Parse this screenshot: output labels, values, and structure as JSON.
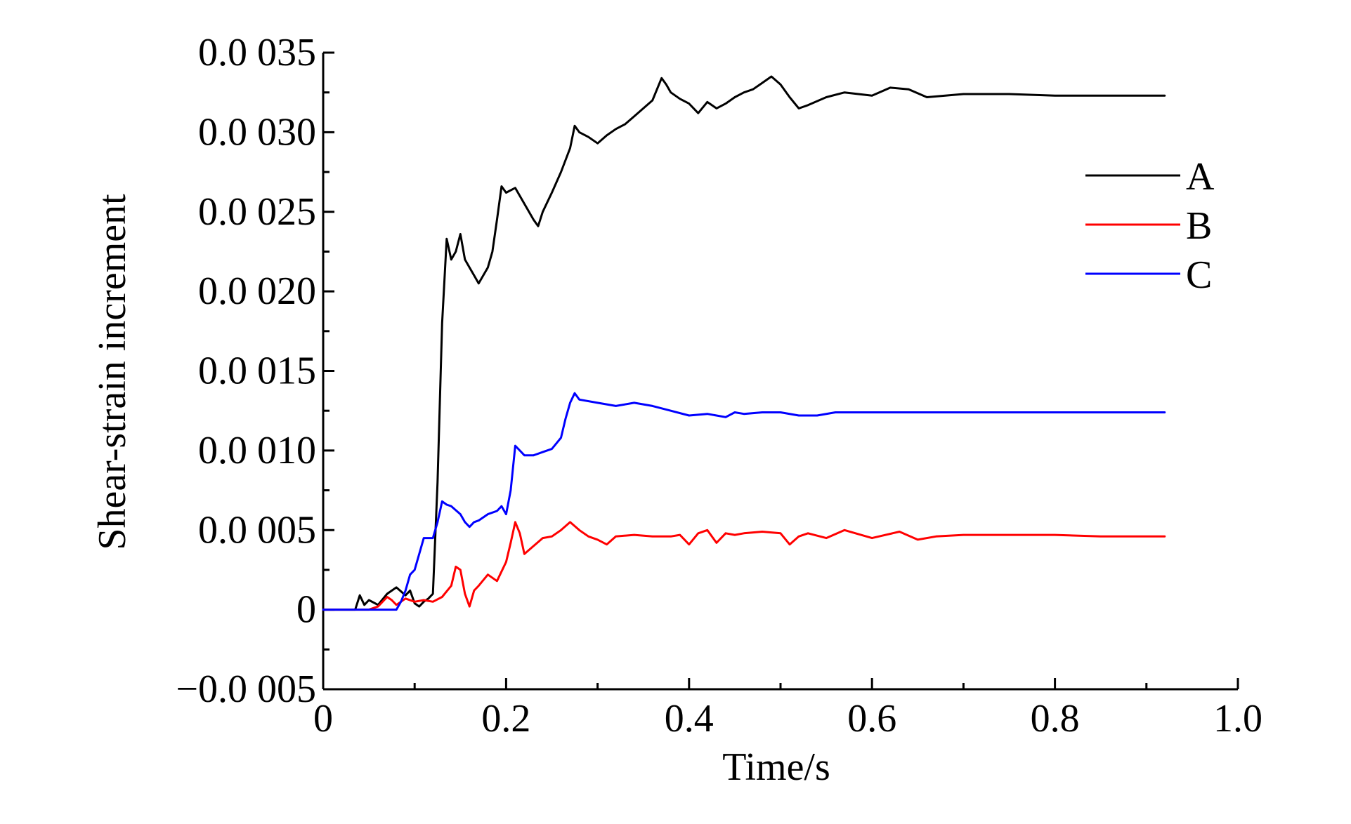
{
  "chart_data": {
    "type": "line",
    "xlabel": "Time/s",
    "ylabel": "Shear-strain increment",
    "xlim": [
      0,
      1.0
    ],
    "ylim": [
      -0.005,
      0.035
    ],
    "x_ticks": [
      0,
      0.2,
      0.4,
      0.6,
      0.8,
      1.0
    ],
    "x_tick_labels": [
      "0",
      "0.2",
      "0.4",
      "0.6",
      "0.8",
      "1.0"
    ],
    "y_ticks": [
      -0.005,
      0,
      0.005,
      0.01,
      0.015,
      0.02,
      0.025,
      0.03,
      0.035
    ],
    "y_tick_labels": [
      "−0.0 005",
      "0",
      "0.0 005",
      "0.0 010",
      "0.0 015",
      "0.0 020",
      "0.0 025",
      "0.0 030",
      "0.0 035"
    ],
    "grid": false,
    "legend_position": "top-right",
    "series": [
      {
        "name": "A",
        "color": "#000000",
        "x": [
          0,
          0.035,
          0.04,
          0.045,
          0.05,
          0.06,
          0.07,
          0.08,
          0.09,
          0.095,
          0.1,
          0.105,
          0.11,
          0.115,
          0.12,
          0.125,
          0.13,
          0.135,
          0.14,
          0.145,
          0.15,
          0.155,
          0.16,
          0.165,
          0.17,
          0.175,
          0.18,
          0.185,
          0.19,
          0.195,
          0.2,
          0.21,
          0.22,
          0.23,
          0.235,
          0.24,
          0.25,
          0.26,
          0.27,
          0.275,
          0.28,
          0.29,
          0.3,
          0.31,
          0.32,
          0.33,
          0.34,
          0.35,
          0.36,
          0.37,
          0.375,
          0.38,
          0.39,
          0.4,
          0.41,
          0.42,
          0.43,
          0.44,
          0.45,
          0.46,
          0.47,
          0.48,
          0.49,
          0.5,
          0.51,
          0.52,
          0.53,
          0.55,
          0.57,
          0.6,
          0.62,
          0.64,
          0.66,
          0.7,
          0.75,
          0.8,
          0.85,
          0.92
        ],
        "y": [
          0,
          0,
          0.0009,
          0.0003,
          0.0006,
          0.0003,
          0.001,
          0.0014,
          0.0009,
          0.0012,
          0.0004,
          0.0002,
          0.0005,
          0.0007,
          0.001,
          0.008,
          0.018,
          0.0233,
          0.022,
          0.0225,
          0.0236,
          0.022,
          0.0215,
          0.021,
          0.0205,
          0.021,
          0.0215,
          0.0225,
          0.0245,
          0.0266,
          0.0262,
          0.0265,
          0.0255,
          0.0245,
          0.0241,
          0.025,
          0.0262,
          0.0275,
          0.029,
          0.0304,
          0.03,
          0.0297,
          0.0293,
          0.0298,
          0.0302,
          0.0305,
          0.031,
          0.0315,
          0.032,
          0.0334,
          0.033,
          0.0325,
          0.0321,
          0.0318,
          0.0312,
          0.0319,
          0.0315,
          0.0318,
          0.0322,
          0.0325,
          0.0327,
          0.0331,
          0.0335,
          0.033,
          0.0322,
          0.0315,
          0.0317,
          0.0322,
          0.0325,
          0.0323,
          0.0328,
          0.0327,
          0.0322,
          0.0324,
          0.0324,
          0.0323,
          0.0323,
          0.0323
        ]
      },
      {
        "name": "B",
        "color": "#ff0000",
        "x": [
          0,
          0.05,
          0.06,
          0.07,
          0.075,
          0.08,
          0.09,
          0.1,
          0.11,
          0.12,
          0.13,
          0.14,
          0.145,
          0.15,
          0.155,
          0.16,
          0.165,
          0.17,
          0.18,
          0.19,
          0.2,
          0.205,
          0.21,
          0.215,
          0.22,
          0.23,
          0.24,
          0.25,
          0.26,
          0.27,
          0.28,
          0.29,
          0.3,
          0.31,
          0.32,
          0.34,
          0.36,
          0.38,
          0.39,
          0.4,
          0.41,
          0.42,
          0.43,
          0.44,
          0.45,
          0.46,
          0.48,
          0.5,
          0.51,
          0.52,
          0.53,
          0.55,
          0.57,
          0.6,
          0.63,
          0.65,
          0.67,
          0.7,
          0.75,
          0.8,
          0.85,
          0.92
        ],
        "y": [
          0,
          0,
          0.0002,
          0.0008,
          0.0006,
          0.0003,
          0.0007,
          0.0005,
          0.0006,
          0.0005,
          0.0008,
          0.0015,
          0.0027,
          0.0025,
          0.001,
          0.0002,
          0.0012,
          0.0015,
          0.0022,
          0.0018,
          0.003,
          0.0042,
          0.0055,
          0.0048,
          0.0035,
          0.004,
          0.0045,
          0.0046,
          0.005,
          0.0055,
          0.005,
          0.0046,
          0.0044,
          0.0041,
          0.0046,
          0.0047,
          0.0046,
          0.0046,
          0.0047,
          0.0041,
          0.0048,
          0.005,
          0.0042,
          0.0048,
          0.0047,
          0.0048,
          0.0049,
          0.0048,
          0.0041,
          0.0046,
          0.0048,
          0.0045,
          0.005,
          0.0045,
          0.0049,
          0.0044,
          0.0046,
          0.0047,
          0.0047,
          0.0047,
          0.0046,
          0.0046
        ]
      },
      {
        "name": "C",
        "color": "#0000ff",
        "x": [
          0,
          0.08,
          0.085,
          0.09,
          0.095,
          0.1,
          0.105,
          0.11,
          0.12,
          0.125,
          0.13,
          0.135,
          0.14,
          0.15,
          0.155,
          0.16,
          0.165,
          0.17,
          0.18,
          0.19,
          0.195,
          0.2,
          0.205,
          0.21,
          0.215,
          0.22,
          0.23,
          0.24,
          0.25,
          0.26,
          0.265,
          0.27,
          0.275,
          0.28,
          0.3,
          0.32,
          0.34,
          0.36,
          0.38,
          0.4,
          0.42,
          0.44,
          0.45,
          0.46,
          0.48,
          0.5,
          0.52,
          0.54,
          0.56,
          0.6,
          0.65,
          0.7,
          0.75,
          0.8,
          0.85,
          0.92
        ],
        "y": [
          0,
          0,
          0.0005,
          0.0012,
          0.0022,
          0.0025,
          0.0035,
          0.0045,
          0.0045,
          0.0055,
          0.0068,
          0.0066,
          0.0065,
          0.006,
          0.0055,
          0.0052,
          0.0055,
          0.0056,
          0.006,
          0.0062,
          0.0065,
          0.006,
          0.0075,
          0.0103,
          0.01,
          0.0097,
          0.0097,
          0.0099,
          0.0101,
          0.0108,
          0.012,
          0.013,
          0.0136,
          0.0132,
          0.013,
          0.0128,
          0.013,
          0.0128,
          0.0125,
          0.0122,
          0.0123,
          0.0121,
          0.0124,
          0.0123,
          0.0124,
          0.0124,
          0.0122,
          0.0122,
          0.0124,
          0.0124,
          0.0124,
          0.0124,
          0.0124,
          0.0124,
          0.0124,
          0.0124
        ]
      }
    ]
  }
}
